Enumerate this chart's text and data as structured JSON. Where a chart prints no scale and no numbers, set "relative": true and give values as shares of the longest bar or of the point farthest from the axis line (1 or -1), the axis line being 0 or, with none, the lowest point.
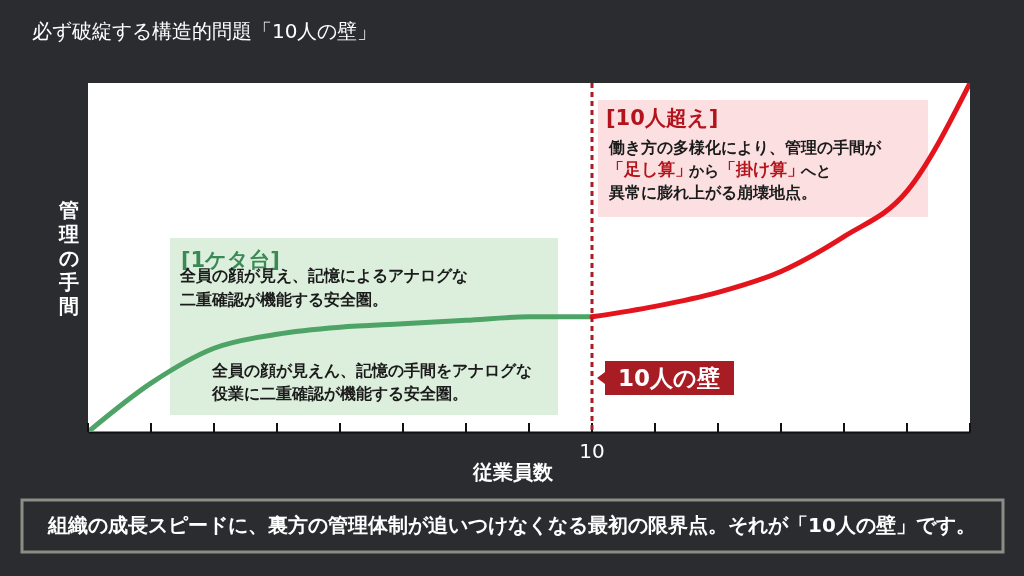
{
  "chart_data": {
    "type": "line",
    "title": "必ず破綻する構造的問題「10人の壁」",
    "xlabel": "従業員数",
    "ylabel": "管理の手間",
    "relative": true,
    "grid": false,
    "categories": [
      null,
      null,
      null,
      null,
      null,
      null,
      null,
      null,
      null,
      null,
      null,
      null,
      null,
      null,
      null
    ],
    "series": [
      {
        "color": "#4ea467",
        "values": [
          0,
          0.14,
          0.24,
          0.28,
          0.3,
          0.31,
          0.32,
          0.33,
          0.33,
          null,
          null,
          null,
          null,
          null,
          null
        ]
      },
      {
        "color": "#e3141c",
        "values": [
          null,
          null,
          null,
          null,
          null,
          null,
          null,
          null,
          0.33,
          0.36,
          0.4,
          0.46,
          0.56,
          0.69,
          1
        ]
      }
    ],
    "ref_lines": [
      {
        "axis": "x",
        "value": "10",
        "label": "10人の壁",
        "color": "#a81c24",
        "line_style": "dashed"
      }
    ],
    "annotations": [
      "[1ケタ台]",
      "全員の顔が見え、記憶によるアナログな二重確認が機能する安全圏。",
      "全員の顔が見えん、記憶の手間をアナログな役業に二重確認が機能する安全圏。",
      "[10人超え]",
      "働き方の多様化により、管理の手間が",
      "「足し算」",
      "から",
      "「掛け算」",
      "へと",
      "異常に膨れ上がる崩壊地点。",
      "組織の成長スピードに、裏方の管理体制が追いつけなくなる最初の限界点。それが「10人の壁」です。"
    ]
  }
}
